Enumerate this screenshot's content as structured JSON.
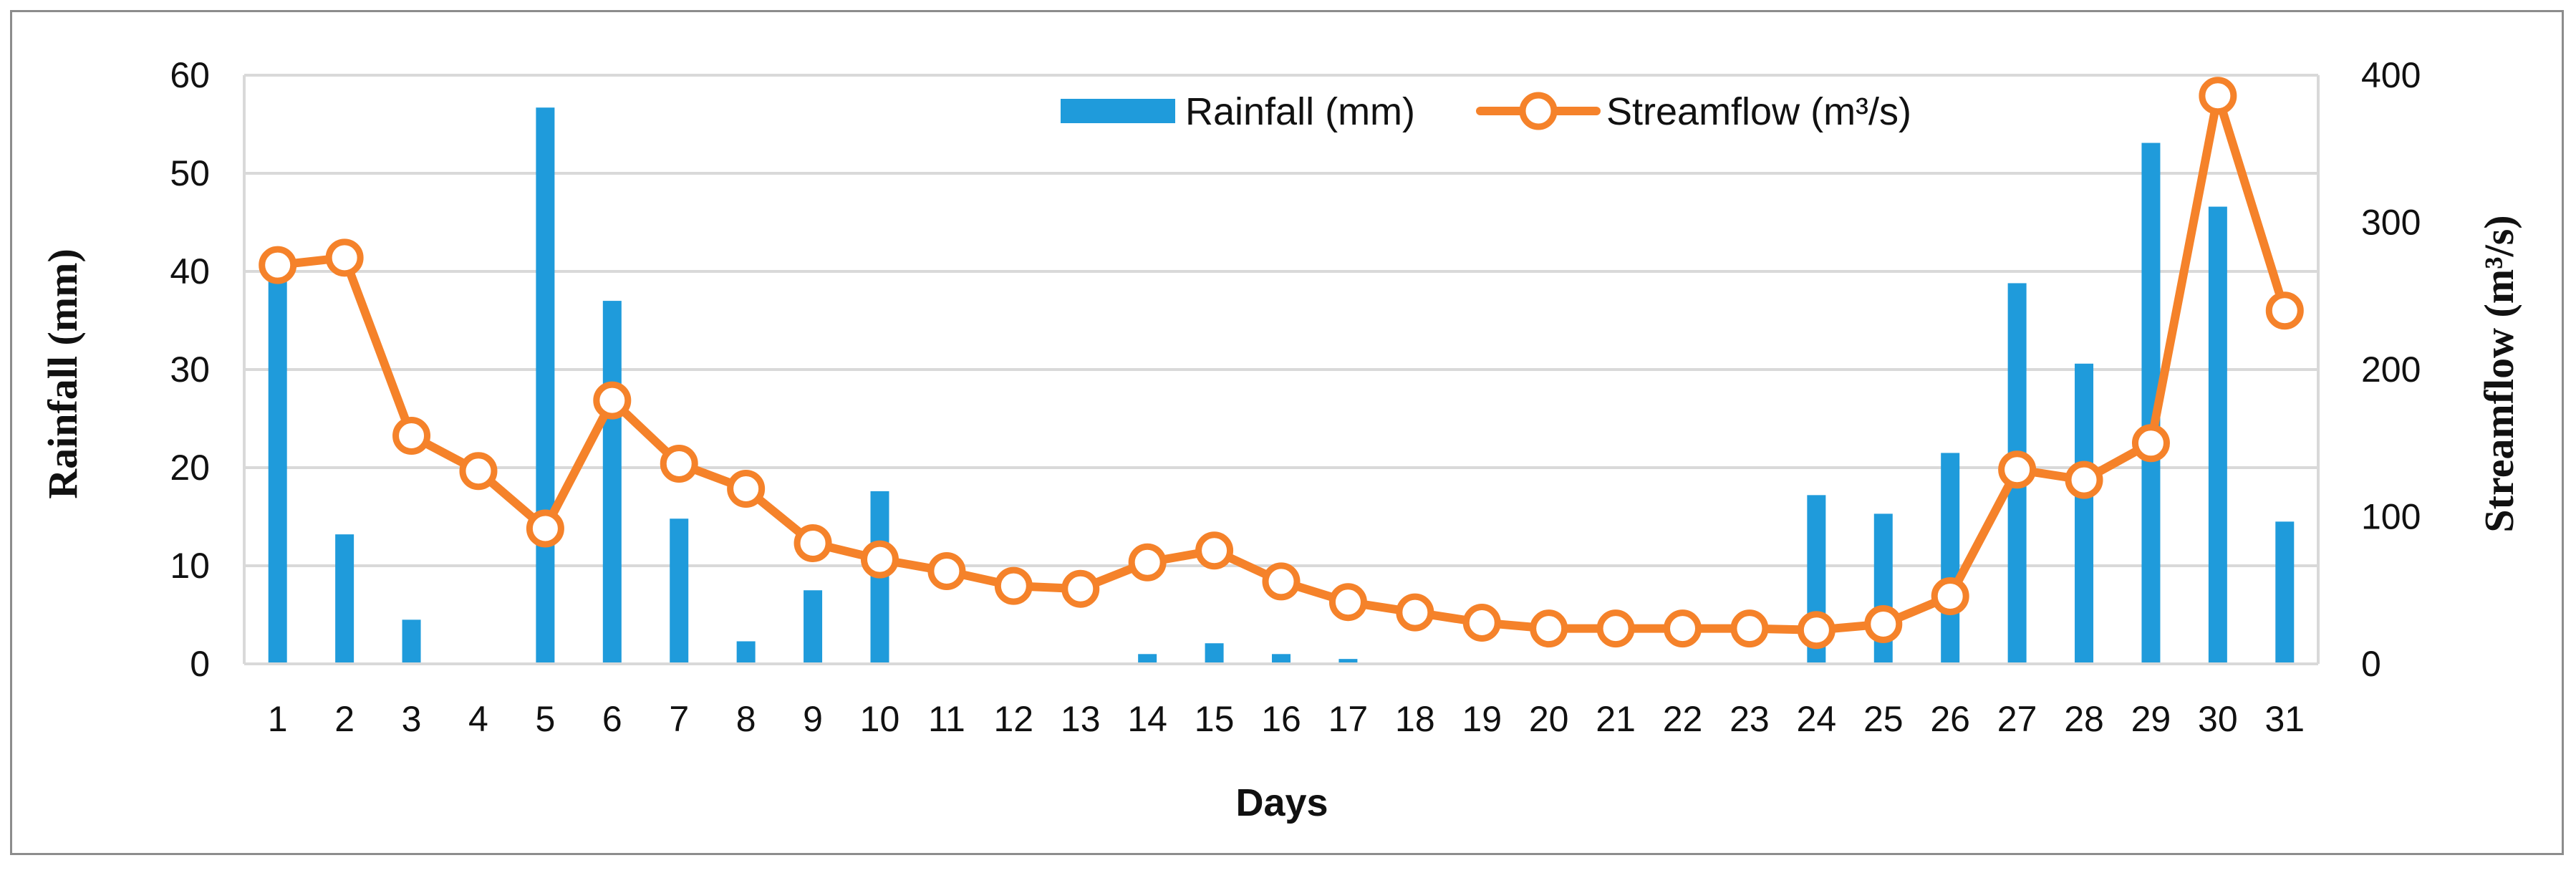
{
  "chart_data": {
    "type": "bar+line",
    "categories": [
      "1",
      "2",
      "3",
      "4",
      "5",
      "6",
      "7",
      "8",
      "9",
      "10",
      "11",
      "12",
      "13",
      "14",
      "15",
      "16",
      "17",
      "18",
      "19",
      "20",
      "21",
      "22",
      "23",
      "24",
      "25",
      "26",
      "27",
      "28",
      "29",
      "30",
      "31"
    ],
    "series": [
      {
        "name": "Rainfall (mm)",
        "type": "bar",
        "axis": "left",
        "color": "#1f9bdb",
        "values": [
          39.5,
          13.2,
          4.5,
          0,
          56.7,
          37.0,
          14.8,
          2.3,
          7.5,
          17.6,
          0,
          0,
          0,
          1.0,
          2.1,
          1.0,
          0.5,
          0,
          0,
          0,
          0,
          0,
          0,
          17.2,
          15.3,
          21.5,
          38.8,
          30.6,
          53.1,
          46.6,
          14.5
        ]
      },
      {
        "name": "Streamflow (m³/s)",
        "type": "line",
        "axis": "right",
        "color": "#f5822a",
        "values": [
          271,
          276,
          155,
          131,
          92,
          179,
          136,
          119,
          82,
          71,
          63,
          53,
          51,
          69,
          77,
          56,
          42,
          35,
          28,
          24,
          24,
          24,
          24,
          23,
          27,
          46,
          132,
          125,
          150,
          386,
          240
        ]
      }
    ],
    "xlabel": "Days",
    "ylabel_left": "Rainfall (mm)",
    "ylabel_right": "Streamflow (m³/s)",
    "ylim_left": [
      0,
      60
    ],
    "yticks_left": [
      "0",
      "10",
      "20",
      "30",
      "40",
      "50",
      "60"
    ],
    "ylim_right": [
      0,
      400
    ],
    "yticks_right": [
      "0",
      "100",
      "200",
      "300",
      "400"
    ],
    "grid": true,
    "legend_position": "top-center"
  }
}
